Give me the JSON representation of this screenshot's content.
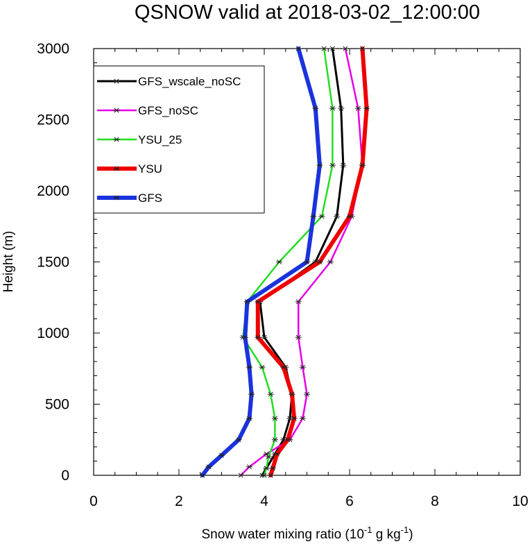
{
  "chart_data": {
    "type": "line",
    "title": "QSNOW valid at 2018-03-02_12:00:00",
    "xlabel": "Snow water mixing ratio (10",
    "xlabel_sup1": "-1",
    "xlabel_mid": " g kg",
    "xlabel_sup2": "-1",
    "xlabel_end": ")",
    "ylabel": "Height (m)",
    "xlim": [
      0,
      10
    ],
    "ylim": [
      0,
      3000
    ],
    "x_ticks": [
      0,
      2,
      4,
      6,
      8,
      10
    ],
    "x_tick_labels": [
      "0",
      "2",
      "4",
      "6",
      "8",
      "10"
    ],
    "y_ticks": [
      0,
      500,
      1000,
      1500,
      2000,
      2500,
      3000
    ],
    "y_tick_labels": [
      "0",
      "500",
      "1000",
      "1500",
      "2000",
      "2500",
      "3000"
    ],
    "grid": false,
    "legend_position": "top-left",
    "series": [
      {
        "name": "GFS_wscale_noSC",
        "color": "#000000",
        "width": 3,
        "points": [
          [
            3.95,
            0
          ],
          [
            4.05,
            50
          ],
          [
            4.25,
            150
          ],
          [
            4.45,
            250
          ],
          [
            4.6,
            400
          ],
          [
            4.65,
            570
          ],
          [
            4.5,
            760
          ],
          [
            4.0,
            970
          ],
          [
            3.9,
            1220
          ],
          [
            5.2,
            1500
          ],
          [
            5.7,
            1820
          ],
          [
            5.85,
            2180
          ],
          [
            5.8,
            2580
          ],
          [
            5.6,
            3000
          ]
        ]
      },
      {
        "name": "GFS_noSC",
        "color": "#e600e6",
        "width": 2.5,
        "points": [
          [
            3.45,
            0
          ],
          [
            3.65,
            60
          ],
          [
            4.05,
            150
          ],
          [
            4.6,
            250
          ],
          [
            4.9,
            400
          ],
          [
            5.0,
            570
          ],
          [
            4.9,
            760
          ],
          [
            4.8,
            970
          ],
          [
            4.8,
            1220
          ],
          [
            5.55,
            1500
          ],
          [
            6.05,
            1820
          ],
          [
            6.3,
            2180
          ],
          [
            6.2,
            2580
          ],
          [
            5.9,
            3000
          ]
        ]
      },
      {
        "name": "YSU_25",
        "color": "#22dd22",
        "width": 2.5,
        "points": [
          [
            4.0,
            0
          ],
          [
            4.05,
            50
          ],
          [
            4.1,
            130
          ],
          [
            4.25,
            250
          ],
          [
            4.25,
            400
          ],
          [
            4.15,
            570
          ],
          [
            3.95,
            760
          ],
          [
            3.5,
            970
          ],
          [
            3.6,
            1220
          ],
          [
            4.35,
            1500
          ],
          [
            5.35,
            1820
          ],
          [
            5.6,
            2180
          ],
          [
            5.6,
            2580
          ],
          [
            5.4,
            3000
          ]
        ]
      },
      {
        "name": "YSU",
        "color": "#ee0000",
        "width": 6,
        "points": [
          [
            4.15,
            0
          ],
          [
            4.2,
            50
          ],
          [
            4.3,
            150
          ],
          [
            4.55,
            250
          ],
          [
            4.7,
            400
          ],
          [
            4.65,
            570
          ],
          [
            4.45,
            760
          ],
          [
            3.85,
            970
          ],
          [
            3.85,
            1220
          ],
          [
            5.3,
            1500
          ],
          [
            6.0,
            1820
          ],
          [
            6.3,
            2180
          ],
          [
            6.4,
            2580
          ],
          [
            6.3,
            3000
          ]
        ]
      },
      {
        "name": "GFS",
        "color": "#1a33dd",
        "width": 6,
        "points": [
          [
            2.55,
            0
          ],
          [
            2.7,
            60
          ],
          [
            3.0,
            140
          ],
          [
            3.4,
            250
          ],
          [
            3.65,
            400
          ],
          [
            3.7,
            570
          ],
          [
            3.65,
            760
          ],
          [
            3.55,
            970
          ],
          [
            3.6,
            1220
          ],
          [
            5.0,
            1500
          ],
          [
            5.15,
            1820
          ],
          [
            5.3,
            2180
          ],
          [
            5.2,
            2580
          ],
          [
            4.8,
            3000
          ]
        ]
      }
    ]
  }
}
